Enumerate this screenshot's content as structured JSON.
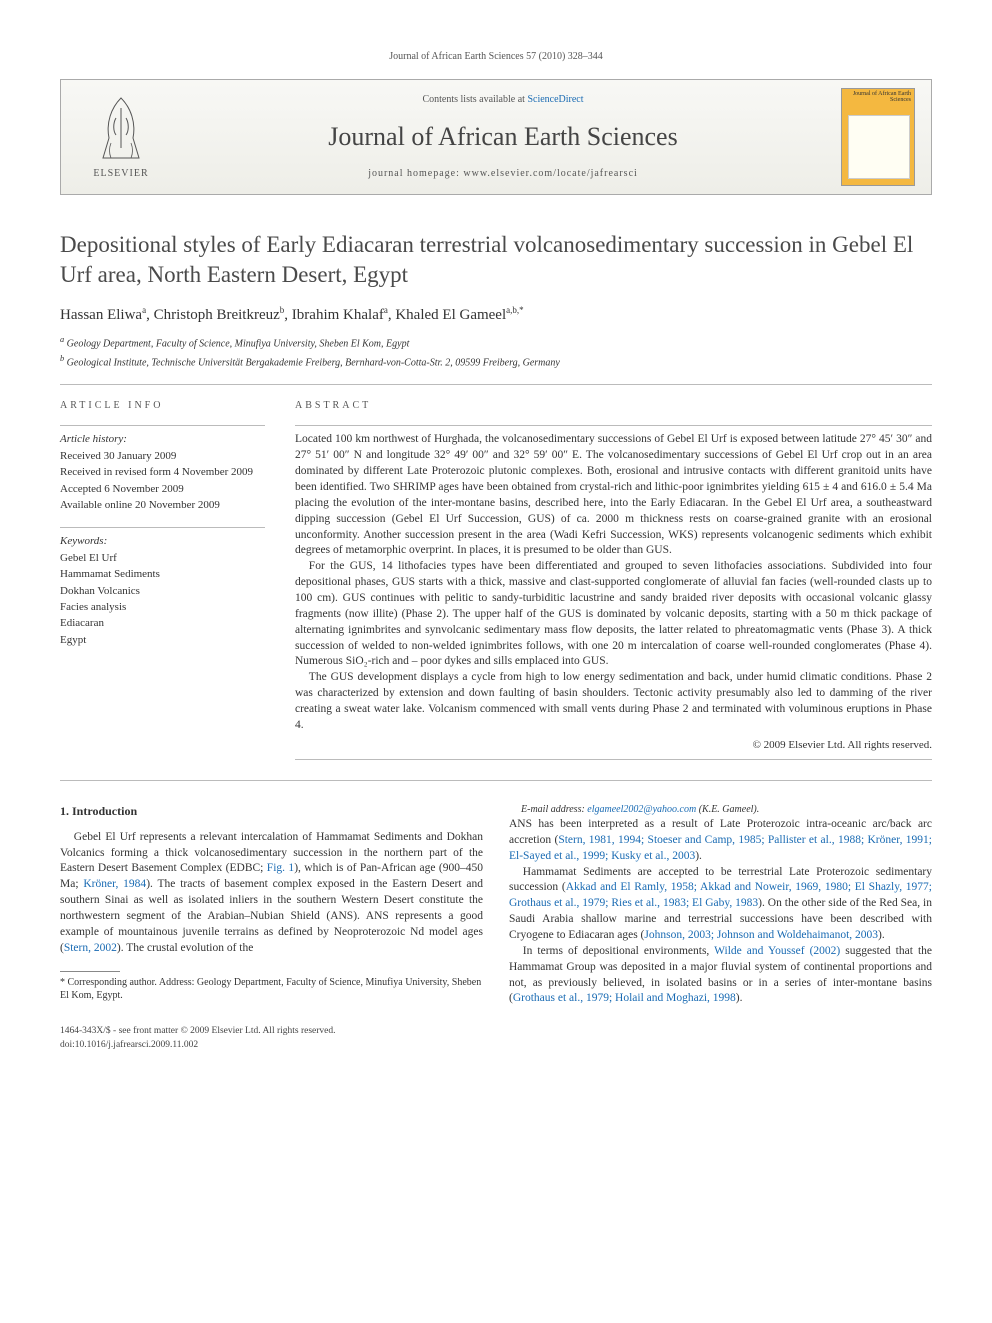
{
  "journal_ref": "Journal of African Earth Sciences 57 (2010) 328–344",
  "banner": {
    "publisher": "ELSEVIER",
    "contents_prefix": "Contents lists available at ",
    "contents_link": "ScienceDirect",
    "journal_name": "Journal of African Earth Sciences",
    "homepage_prefix": "journal homepage: ",
    "homepage_url": "www.elsevier.com/locate/jafrearsci",
    "cover_title": "Journal of African Earth Sciences"
  },
  "title": "Depositional styles of Early Ediacaran terrestrial volcanosedimentary succession in Gebel El Urf area, North Eastern Desert, Egypt",
  "authors_html": "Hassan Eliwa<sup>a</sup>, Christoph Breitkreuz<sup>b</sup>, Ibrahim Khalaf<sup>a</sup>, Khaled El Gameel<sup>a,b,*</sup>",
  "affiliations": {
    "a": "Geology Department, Faculty of Science, Minufiya University, Sheben El Kom, Egypt",
    "b": "Geological Institute, Technische Universität Bergakademie Freiberg, Bernhard-von-Cotta-Str. 2, 09599 Freiberg, Germany"
  },
  "article_info_label": "ARTICLE INFO",
  "abstract_label": "ABSTRACT",
  "history_label": "Article history:",
  "history": {
    "received": "Received 30 January 2009",
    "revised": "Received in revised form 4 November 2009",
    "accepted": "Accepted 6 November 2009",
    "online": "Available online 20 November 2009"
  },
  "keywords_label": "Keywords:",
  "keywords": [
    "Gebel El Urf",
    "Hammamat Sediments",
    "Dokhan Volcanics",
    "Facies analysis",
    "Ediacaran",
    "Egypt"
  ],
  "abstract": {
    "p1": "Located 100 km northwest of Hurghada, the volcanosedimentary successions of Gebel El Urf is exposed between latitude 27° 45′ 30″ and 27° 51′ 00″ N and longitude 32° 49′ 00″ and 32° 59′ 00″ E. The volcanosedimentary successions of Gebel El Urf crop out in an area dominated by different Late Proterozoic plutonic complexes. Both, erosional and intrusive contacts with different granitoid units have been identified. Two SHRIMP ages have been obtained from crystal-rich and lithic-poor ignimbrites yielding 615 ± 4 and 616.0 ± 5.4 Ma placing the evolution of the inter-montane basins, described here, into the Early Ediacaran. In the Gebel El Urf area, a southeastward dipping succession (Gebel El Urf Succession, GUS) of ca. 2000 m thickness rests on coarse-grained granite with an erosional unconformity. Another succession present in the area (Wadi Kefri Succession, WKS) represents volcanogenic sediments which exhibit degrees of metamorphic overprint. In places, it is presumed to be older than GUS.",
    "p2": "For the GUS, 14 lithofacies types have been differentiated and grouped to seven lithofacies associations. Subdivided into four depositional phases, GUS starts with a thick, massive and clast-supported conglomerate of alluvial fan facies (well-rounded clasts up to 100 cm). GUS continues with pelitic to sandy-turbiditic lacustrine and sandy braided river deposits with occasional volcanic glassy fragments (now illite) (Phase 2). The upper half of the GUS is dominated by volcanic deposits, starting with a 50 m thick package of alternating ignimbrites and synvolcanic sedimentary mass flow deposits, the latter related to phreatomagmatic vents (Phase 3). A thick succession of welded to non-welded ignimbrites follows, with one 20 m intercalation of coarse well-rounded conglomerates (Phase 4). Numerous SiO₂-rich and – poor dykes and sills emplaced into GUS.",
    "p3": "The GUS development displays a cycle from high to low energy sedimentation and back, under humid climatic conditions. Phase 2 was characterized by extension and down faulting of basin shoulders. Tectonic activity presumably also led to damming of the river creating a sweat water lake. Volcanism commenced with small vents during Phase 2 and terminated with voluminous eruptions in Phase 4."
  },
  "copyright": "© 2009 Elsevier Ltd. All rights reserved.",
  "intro_heading": "1. Introduction",
  "intro": {
    "p1a": "Gebel El Urf represents a relevant intercalation of Hammamat Sediments and Dokhan Volcanics forming a thick volcanosedimentary succession in the northern part of the Eastern Desert Basement Complex (EDBC; ",
    "p1_fig": "Fig. 1",
    "p1b": "), which is of Pan-African age (900–450 Ma; ",
    "p1_ref1": "Kröner, 1984",
    "p1c": "). The tracts of basement complex exposed in the Eastern Desert and southern Sinai as well as isolated inliers in the southern Western Desert constitute the northwestern segment of the Arabian–Nubian Shield (ANS). ANS represents a good example of mountainous juvenile terrains as defined by Neoproterozoic Nd model ages (",
    "p1_ref2": "Stern, 2002",
    "p1d": "). The crustal evolution of the ",
    "p2a": "ANS has been interpreted as a result of Late Proterozoic intra-oceanic arc/back arc accretion (",
    "p2_ref1": "Stern, 1981, 1994; Stoeser and Camp, 1985; Pallister et al., 1988; Kröner, 1991; El-Sayed et al., 1999; Kusky et al., 2003",
    "p2b": ").",
    "p3a": "Hammamat Sediments are accepted to be terrestrial Late Proterozoic sedimentary succession (",
    "p3_ref1": "Akkad and El Ramly, 1958; Akkad and Noweir, 1969, 1980; El Shazly, 1977; Grothaus et al., 1979; Ries et al., 1983; El Gaby, 1983",
    "p3b": "). On the other side of the Red Sea, in Saudi Arabia shallow marine and terrestrial successions have been described with Cryogene to Ediacaran ages (",
    "p3_ref2": "Johnson, 2003; Johnson and Woldehaimanot, 2003",
    "p3c": ").",
    "p4a": "In terms of depositional environments, ",
    "p4_ref1": "Wilde and Youssef (2002)",
    "p4b": " suggested that the Hammamat Group was deposited in a major fluvial system of continental proportions and not, as previously believed, in isolated basins or in a series of inter-montane basins (",
    "p4_ref2": "Grothaus et al., 1979; Holail and Moghazi, 1998",
    "p4c": ")."
  },
  "corr": {
    "text": "* Corresponding author. Address: Geology Department, Faculty of Science, Minufiya University, Sheben El Kom, Egypt.",
    "email_label": "E-mail address: ",
    "email": "elgameel2002@yahoo.com",
    "email_tail": " (K.E. Gameel)."
  },
  "footer": {
    "line1": "1464-343X/$ - see front matter © 2009 Elsevier Ltd. All rights reserved.",
    "line2": "doi:10.1016/j.jafrearsci.2009.11.002"
  },
  "colors": {
    "link": "#1a6bb3",
    "text": "#333333",
    "heading": "#4a4a4a",
    "cover": "#f4b840"
  }
}
